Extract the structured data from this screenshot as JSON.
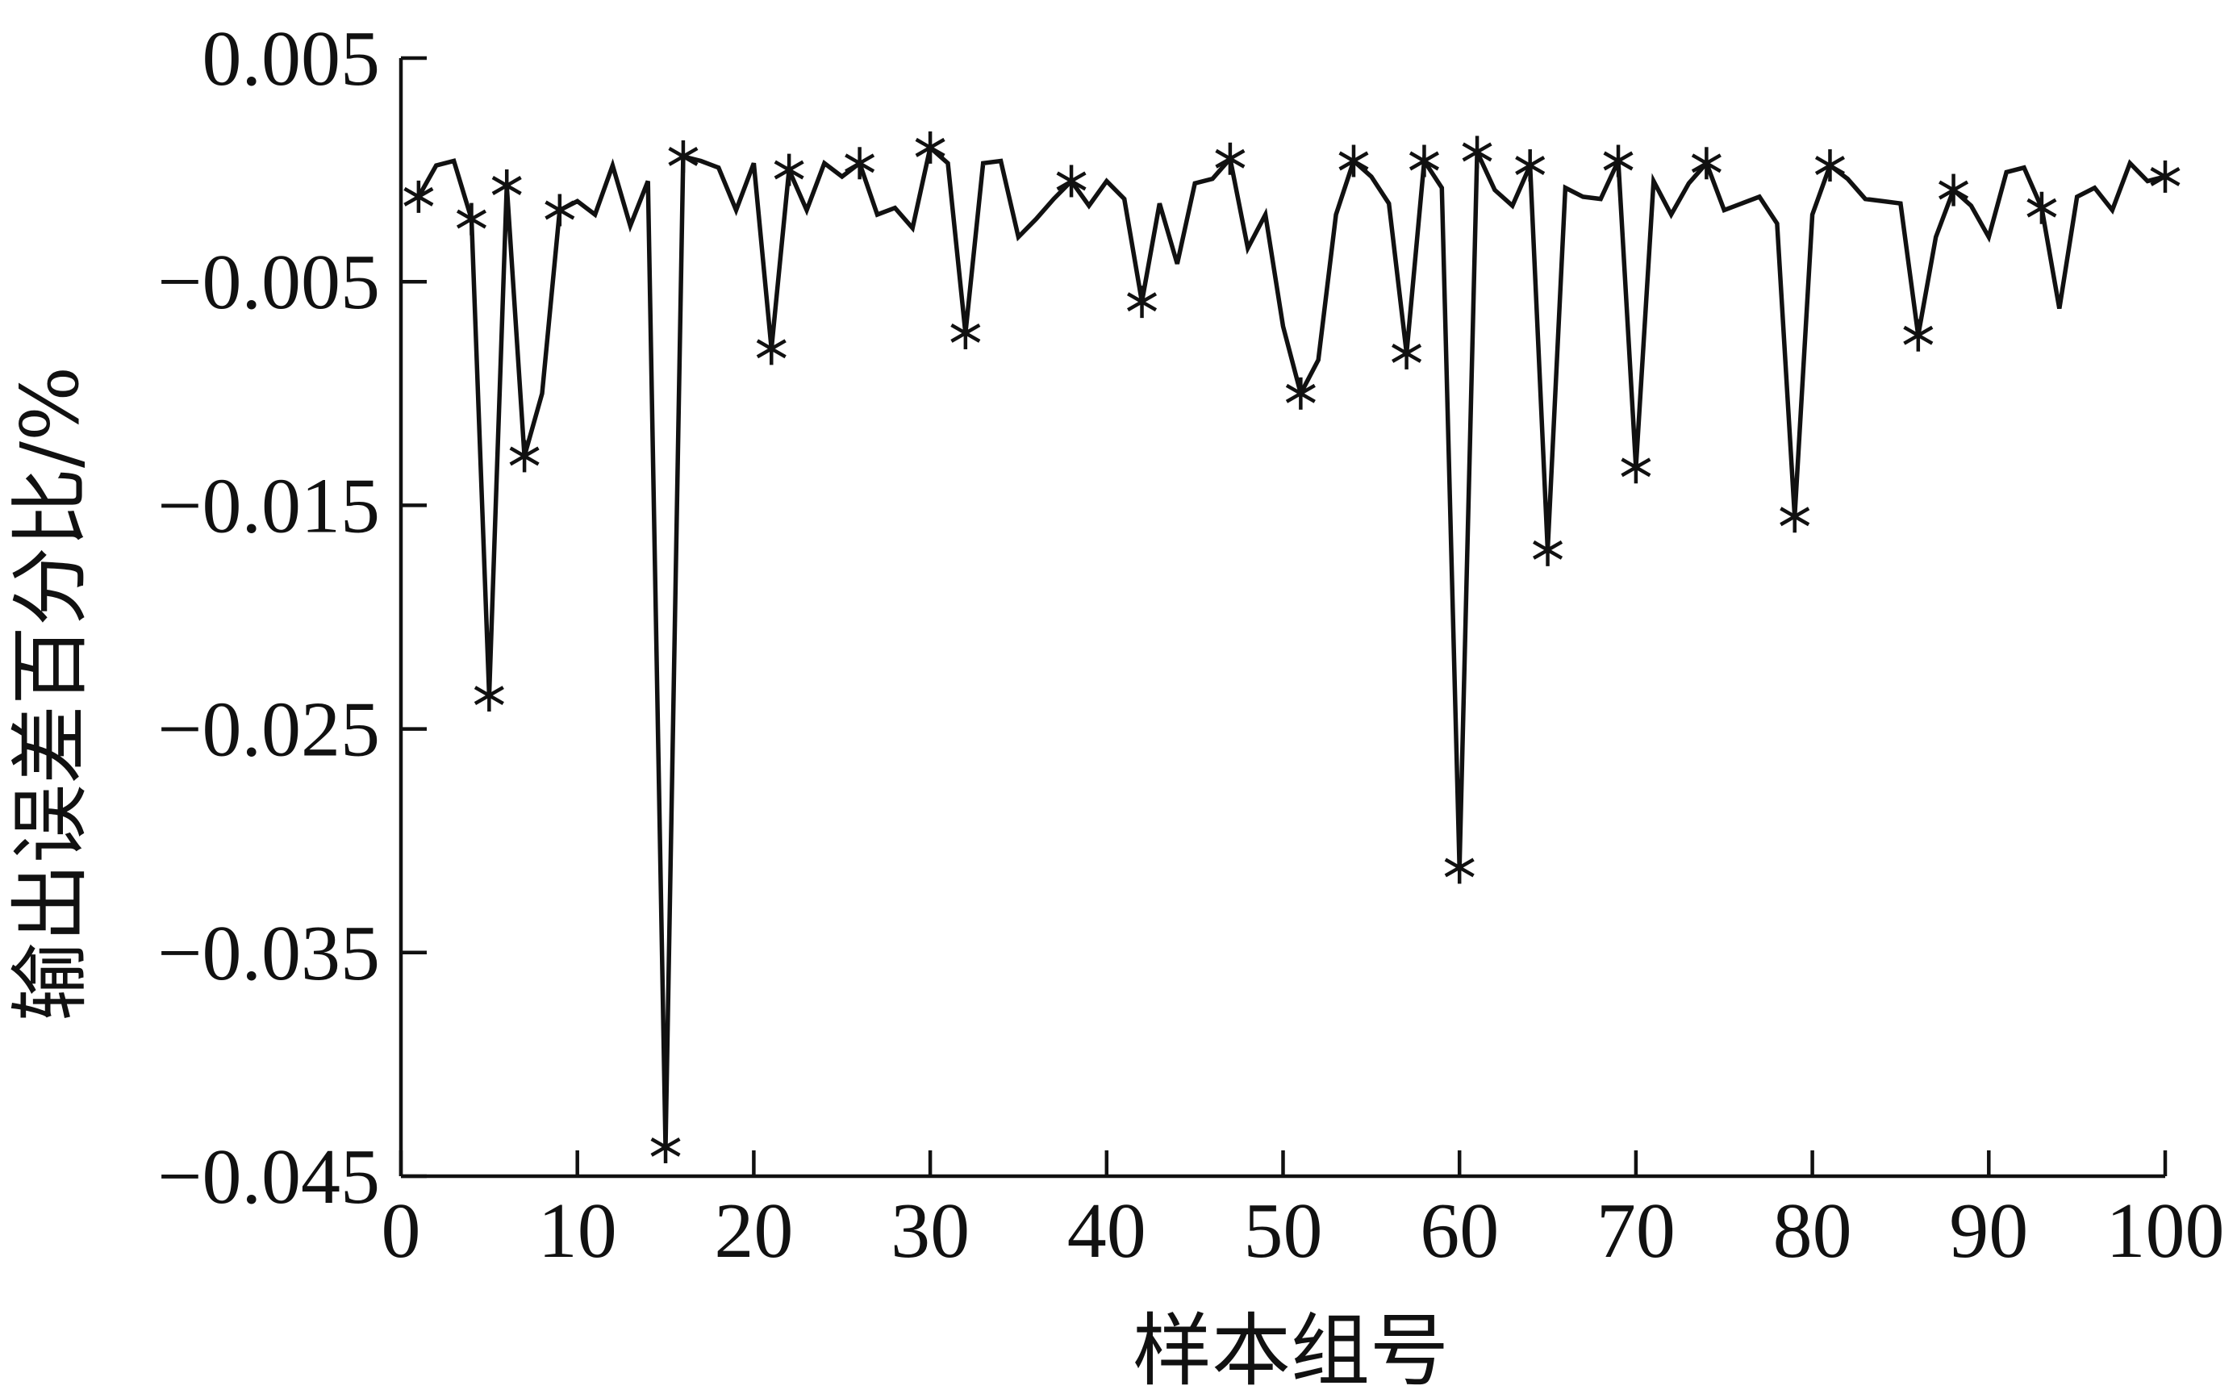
{
  "chart_data": {
    "type": "line",
    "xlabel": "样本组号",
    "ylabel": "输出误差百分比/%",
    "xlim": [
      0,
      100
    ],
    "ylim": [
      -0.045,
      0.005
    ],
    "xticks": [
      0,
      10,
      20,
      30,
      40,
      50,
      60,
      70,
      80,
      90,
      100
    ],
    "yticks": [
      0.005,
      -0.005,
      -0.015,
      -0.025,
      -0.035,
      -0.045
    ],
    "ytick_labels": [
      "0.005",
      "−0.005",
      "−0.015",
      "−0.025",
      "−0.035",
      "−0.045"
    ],
    "grid": false,
    "series": [
      {
        "marker": "asterisk",
        "color": "#111111",
        "points": [
          [
            1,
            -0.0012
          ],
          [
            2,
            0.0002
          ],
          [
            3,
            0.0004
          ],
          [
            4,
            -0.0022
          ],
          [
            5,
            -0.0235
          ],
          [
            6,
            -0.0007
          ],
          [
            7,
            -0.0128
          ],
          [
            8,
            -0.01
          ],
          [
            9,
            -0.0018
          ],
          [
            10,
            -0.0014
          ],
          [
            11,
            -0.002
          ],
          [
            12,
            0.0002
          ],
          [
            13,
            -0.0025
          ],
          [
            14,
            -0.0005
          ],
          [
            15,
            -0.0437
          ],
          [
            16,
            0.0006
          ],
          [
            17,
            0.0004
          ],
          [
            18,
            0.0001
          ],
          [
            19,
            -0.0018
          ],
          [
            20,
            0.0003
          ],
          [
            21,
            -0.008
          ],
          [
            22,
            0.0
          ],
          [
            23,
            -0.0018
          ],
          [
            24,
            0.0003
          ],
          [
            25,
            -0.0003
          ],
          [
            26,
            0.0003
          ],
          [
            27,
            -0.002
          ],
          [
            28,
            -0.0017
          ],
          [
            29,
            -0.0026
          ],
          [
            30,
            0.001
          ],
          [
            31,
            0.0003
          ],
          [
            32,
            -0.0073
          ],
          [
            33,
            0.0003
          ],
          [
            34,
            0.0004
          ],
          [
            35,
            -0.003
          ],
          [
            36,
            -0.0022
          ],
          [
            37,
            -0.0013
          ],
          [
            38,
            -0.0005
          ],
          [
            39,
            -0.0016
          ],
          [
            40,
            -0.0005
          ],
          [
            41,
            -0.0013
          ],
          [
            42,
            -0.0059
          ],
          [
            43,
            -0.0015
          ],
          [
            44,
            -0.0042
          ],
          [
            45,
            -0.0006
          ],
          [
            46,
            -0.0004
          ],
          [
            47,
            0.0005
          ],
          [
            48,
            -0.0035
          ],
          [
            49,
            -0.002
          ],
          [
            50,
            -0.007
          ],
          [
            51,
            -0.01
          ],
          [
            52,
            -0.0085
          ],
          [
            53,
            -0.002
          ],
          [
            54,
            0.0004
          ],
          [
            55,
            -0.0003
          ],
          [
            56,
            -0.0015
          ],
          [
            57,
            -0.0082
          ],
          [
            58,
            0.0004
          ],
          [
            59,
            -0.0008
          ],
          [
            60,
            -0.0312
          ],
          [
            61,
            0.0008
          ],
          [
            62,
            -0.0009
          ],
          [
            63,
            -0.0016
          ],
          [
            64,
            0.0002
          ],
          [
            65,
            -0.017
          ],
          [
            66,
            -0.0008
          ],
          [
            67,
            -0.0012
          ],
          [
            68,
            -0.0013
          ],
          [
            69,
            0.0004
          ],
          [
            70,
            -0.0133
          ],
          [
            71,
            -0.0005
          ],
          [
            72,
            -0.002
          ],
          [
            73,
            -0.0006
          ],
          [
            74,
            0.0003
          ],
          [
            75,
            -0.0018
          ],
          [
            76,
            -0.0015
          ],
          [
            77,
            -0.0012
          ],
          [
            78,
            -0.0024
          ],
          [
            79,
            -0.0155
          ],
          [
            80,
            -0.002
          ],
          [
            81,
            0.0002
          ],
          [
            82,
            -0.0004
          ],
          [
            83,
            -0.0013
          ],
          [
            84,
            -0.0014
          ],
          [
            85,
            -0.0015
          ],
          [
            86,
            -0.0074
          ],
          [
            87,
            -0.003
          ],
          [
            88,
            -0.0009
          ],
          [
            89,
            -0.0016
          ],
          [
            90,
            -0.003
          ],
          [
            91,
            -0.0001
          ],
          [
            92,
            0.0001
          ],
          [
            93,
            -0.0017
          ],
          [
            94,
            -0.0062
          ],
          [
            95,
            -0.0012
          ],
          [
            96,
            -0.0008
          ],
          [
            97,
            -0.0018
          ],
          [
            98,
            0.0003
          ],
          [
            99,
            -0.0005
          ],
          [
            100,
            -0.0003
          ]
        ],
        "marked_x": [
          1,
          4,
          5,
          6,
          7,
          9,
          15,
          16,
          21,
          22,
          26,
          30,
          32,
          38,
          42,
          47,
          51,
          54,
          57,
          58,
          60,
          61,
          64,
          65,
          69,
          70,
          74,
          79,
          81,
          86,
          88,
          93,
          100
        ]
      }
    ]
  }
}
